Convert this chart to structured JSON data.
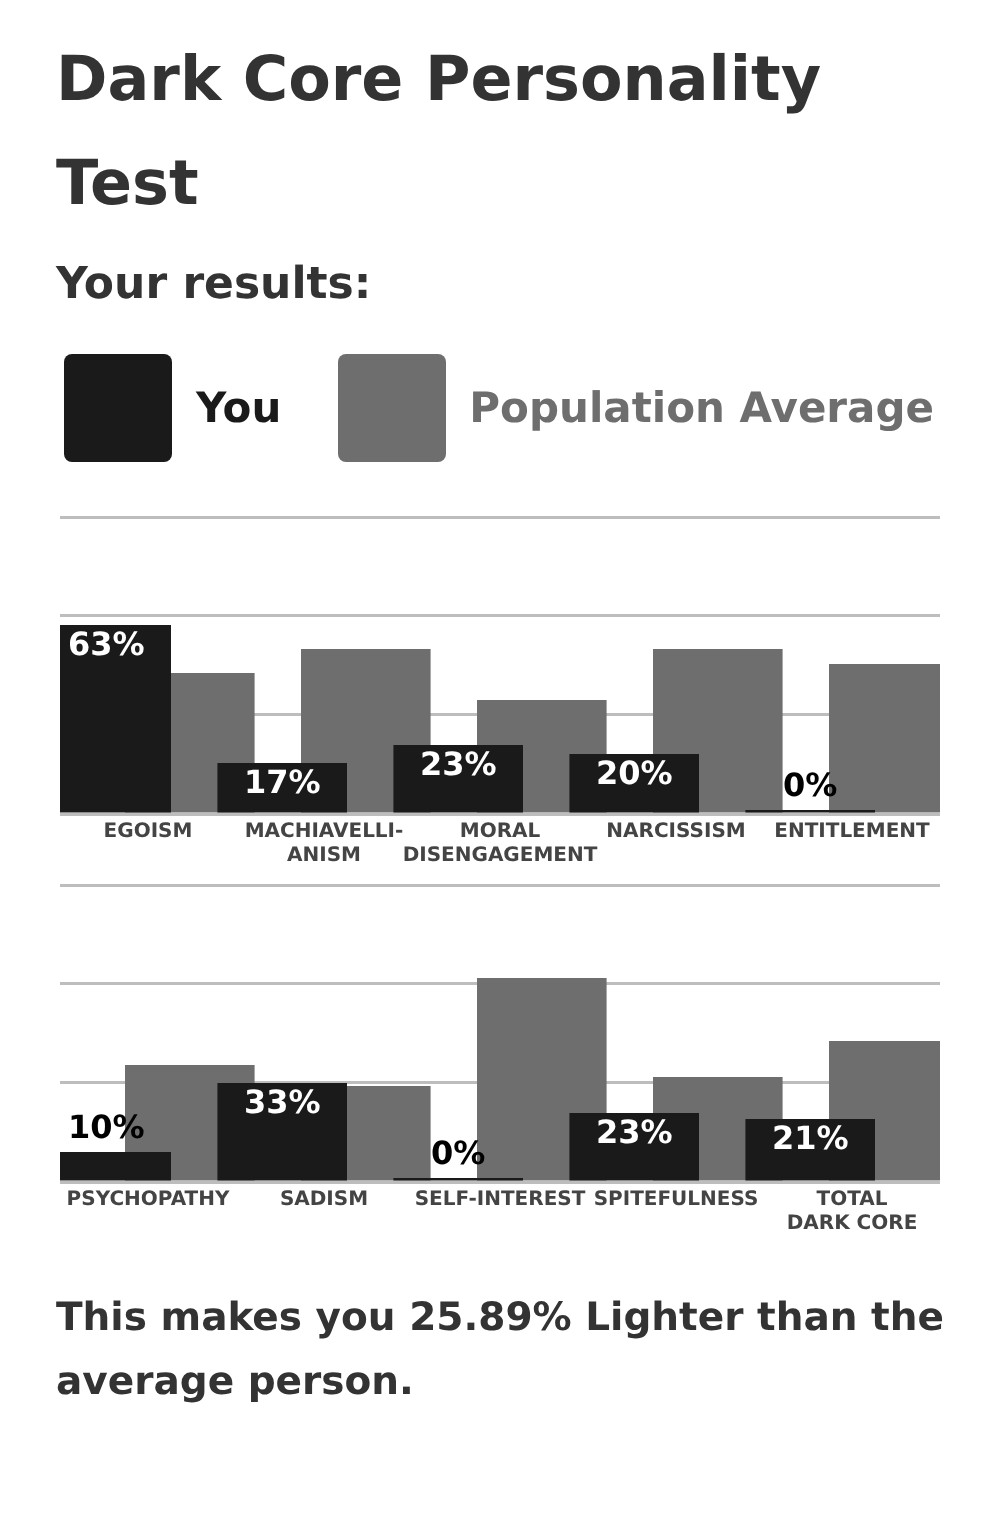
{
  "chart_data": [
    {
      "type": "bar",
      "title": "Dark Core Personality Test",
      "subtitle": "Your results:",
      "legend": "top",
      "grid": "y",
      "tick_labels": "x",
      "categories": [
        "EGOISM",
        "MACHIAVELLI-\nANISM",
        "MORAL\nDISENGAGEMENT",
        "NARCISSISM",
        "ENTITLEMENT"
      ],
      "ylim": [
        0,
        100
      ],
      "yticks": [
        {
          "value": 0,
          "label": null
        },
        {
          "value": 33,
          "label": null
        },
        {
          "value": 66,
          "label": null
        },
        {
          "value": 99,
          "label": null
        }
      ],
      "series": [
        {
          "name": "You",
          "color": "#1a1a1a",
          "values": [
            63,
            17,
            23,
            20,
            0
          ],
          "value_labels": [
            "63%",
            "17%",
            "23%",
            "20%",
            "0%"
          ]
        },
        {
          "name": "Population Average",
          "color": "#6e6e6e",
          "values": [
            47,
            55,
            38,
            55,
            50
          ]
        }
      ]
    },
    {
      "type": "bar",
      "grid": "y",
      "tick_labels": "x",
      "categories": [
        "PSYCHOPATHY",
        "SADISM",
        "SELF-INTEREST",
        "SPITEFULNESS",
        "TOTAL\nDARK CORE"
      ],
      "ylim": [
        0,
        100
      ],
      "yticks": [
        {
          "value": 0,
          "label": null
        },
        {
          "value": 33,
          "label": null
        },
        {
          "value": 66,
          "label": null
        },
        {
          "value": 99,
          "label": null
        }
      ],
      "annotations": [
        "This makes you 25.89% Lighter than the average person."
      ],
      "series": [
        {
          "color": "#1a1a1a",
          "values": [
            10,
            33,
            0,
            23,
            21
          ],
          "value_labels": [
            "10%",
            "33%",
            "0%",
            "23%",
            "21%"
          ]
        },
        {
          "color": "#6e6e6e",
          "values": [
            39,
            32,
            68,
            35,
            47
          ]
        }
      ]
    }
  ]
}
